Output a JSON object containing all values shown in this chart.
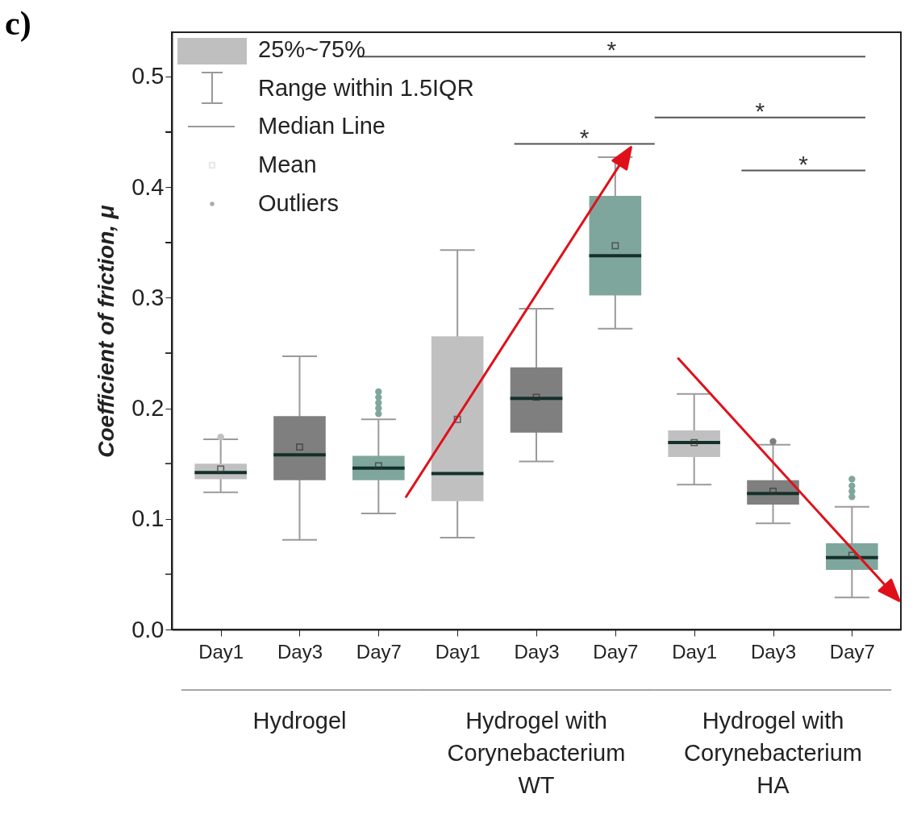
{
  "chart_data": {
    "type": "box",
    "title": "c)",
    "ylabel": "Coefficient of friction, μ",
    "categories": [
      "Day1",
      "Day3",
      "Day7",
      "Day1",
      "Day3",
      "Day7",
      "Day1",
      "Day3",
      "Day7"
    ],
    "colors": [
      "#c0c0c0",
      "#7f7f7f",
      "#7fa69c",
      "#c0c0c0",
      "#7f7f7f",
      "#7fa69c",
      "#c0c0c0",
      "#7f7f7f",
      "#7fa69c"
    ],
    "boxes": [
      {
        "low": 0.124,
        "q1": 0.136,
        "median": 0.142,
        "q3": 0.15,
        "high": 0.172,
        "mean": 0.145,
        "outliers": [
          0.174
        ]
      },
      {
        "low": 0.081,
        "q1": 0.135,
        "median": 0.158,
        "q3": 0.193,
        "high": 0.247,
        "mean": 0.165
      },
      {
        "low": 0.105,
        "q1": 0.135,
        "median": 0.146,
        "q3": 0.157,
        "high": 0.19,
        "mean": 0.148,
        "outliers": [
          0.195,
          0.2,
          0.205,
          0.21,
          0.215
        ]
      },
      {
        "low": 0.083,
        "q1": 0.116,
        "median": 0.141,
        "q3": 0.265,
        "high": 0.343,
        "mean": 0.19
      },
      {
        "low": 0.152,
        "q1": 0.178,
        "median": 0.209,
        "q3": 0.237,
        "high": 0.29,
        "mean": 0.21
      },
      {
        "low": 0.272,
        "q1": 0.302,
        "median": 0.338,
        "q3": 0.392,
        "high": 0.427,
        "mean": 0.347
      },
      {
        "low": 0.131,
        "q1": 0.156,
        "median": 0.169,
        "q3": 0.18,
        "high": 0.213,
        "mean": 0.169
      },
      {
        "low": 0.096,
        "q1": 0.113,
        "median": 0.123,
        "q3": 0.135,
        "high": 0.167,
        "mean": 0.125,
        "outliers": [
          0.17
        ]
      },
      {
        "low": 0.029,
        "q1": 0.054,
        "median": 0.065,
        "q3": 0.078,
        "high": 0.111,
        "mean": 0.067,
        "outliers": [
          0.12,
          0.125,
          0.13,
          0.136
        ]
      }
    ],
    "ylim": [
      0,
      0.54
    ],
    "yticks": [
      {
        "value": 0,
        "label": "0.0"
      },
      {
        "value": 0.05,
        "label": null
      },
      0.1,
      {
        "value": 0.15,
        "label": null
      },
      0.2,
      {
        "value": 0.25,
        "label": null
      },
      0.3,
      {
        "value": 0.35,
        "label": null
      },
      0.4,
      {
        "value": 0.45,
        "label": null
      },
      0.5
    ],
    "annotations": [
      "25%~75%",
      "Range within 1.5IQR",
      "Median Line",
      "Mean",
      "Outliers",
      "*",
      "*",
      "*",
      "*",
      "Hydrogel",
      "Hydrogel with Corynebacterium WT",
      "Hydrogel with Corynebacterium HA"
    ]
  }
}
